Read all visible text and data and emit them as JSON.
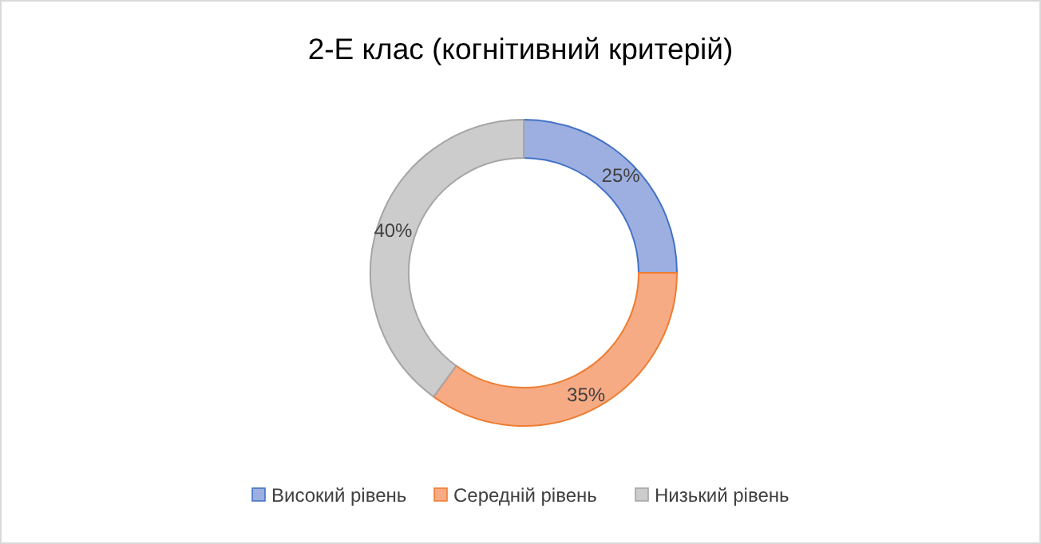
{
  "chart_data": {
    "type": "donut",
    "title": "2-Е клас (когнітивний критерій)",
    "categories": [
      "Високий рівень",
      "Середній рівень",
      "Низький рівень"
    ],
    "values": [
      25,
      35,
      40
    ],
    "colors": [
      "#9dafe0",
      "#f7ab85",
      "#cccccc"
    ],
    "value_labels": [
      "25%",
      "35%",
      "40%"
    ],
    "legend": "bottom"
  }
}
